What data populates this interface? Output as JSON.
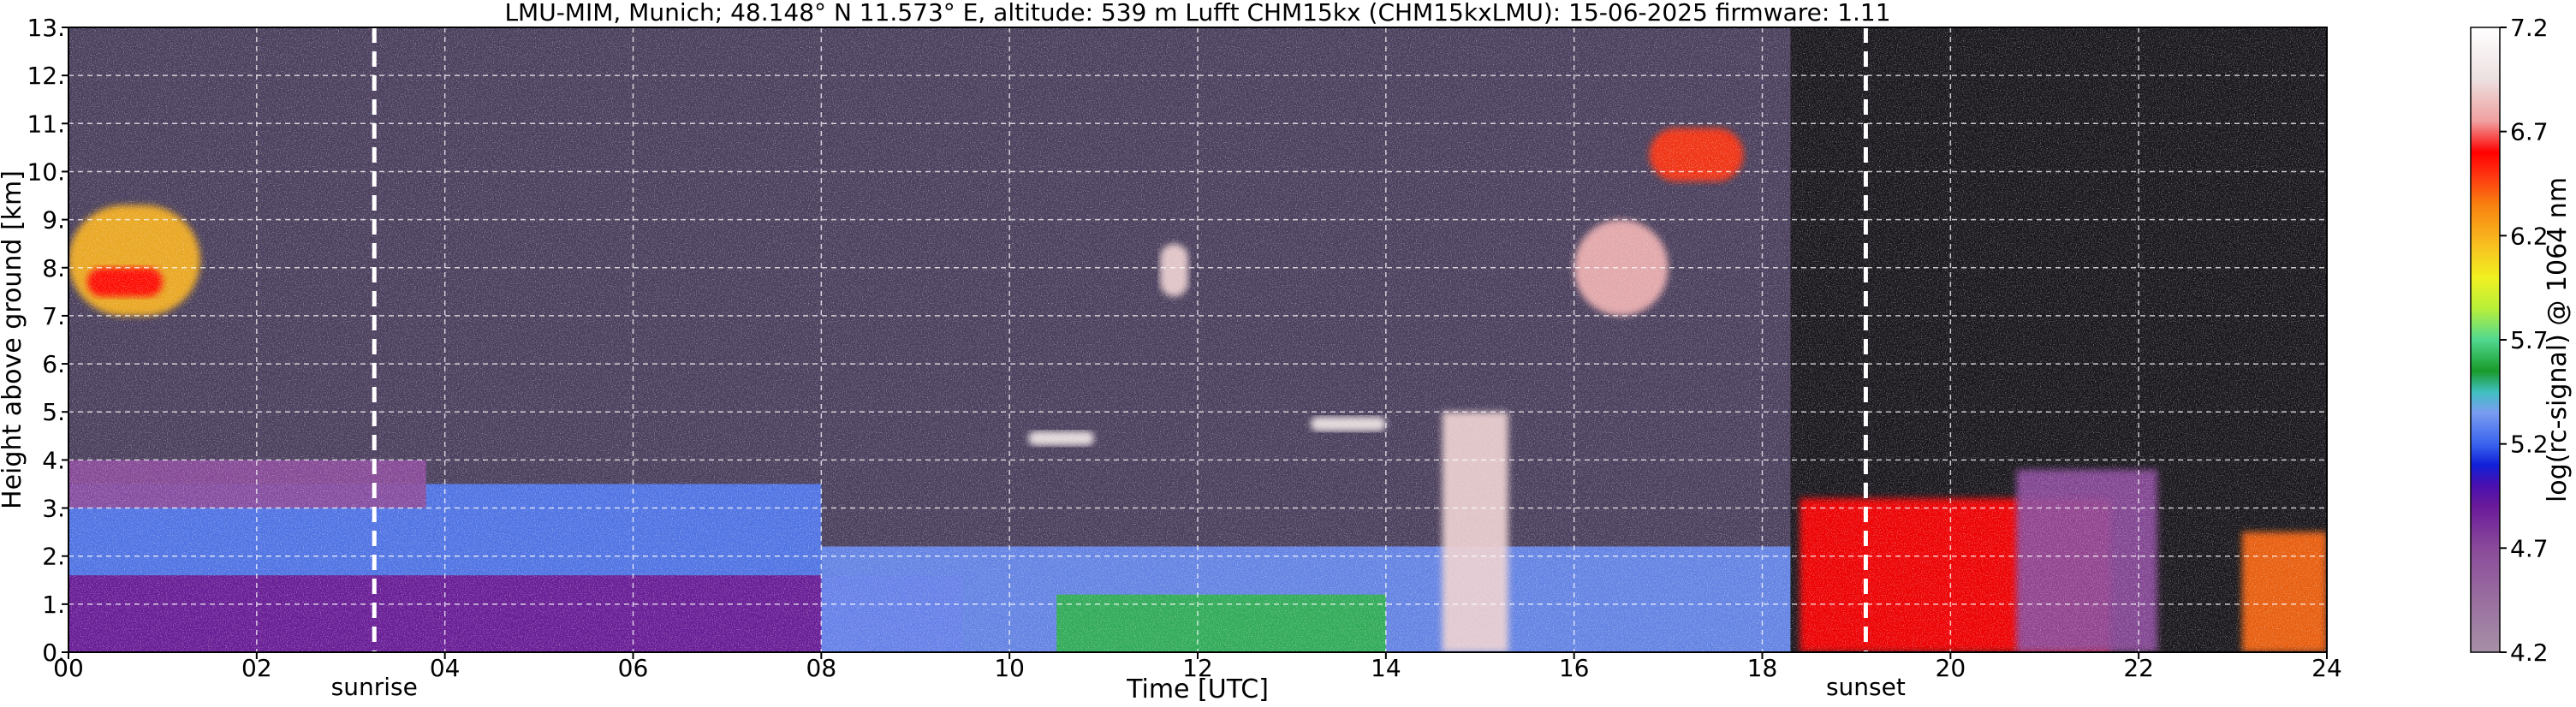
{
  "title": "LMU-MIM, Munich; 48.148° N 11.573° E, altitude: 539 m    Lufft CHM15kx (CHM15kxLMU): 15-06-2025    firmware: 1.11",
  "colors": {
    "background_noise": "#4a3f5c",
    "boundary_layer_purple": "#7a3a9a",
    "aerosol_blue": "#3a64ee",
    "green": "#2aa84a",
    "red": "#ff1010",
    "white": "#ffffff",
    "dark_region": "#101010",
    "grid": "#ffffff"
  },
  "chart_data": {
    "type": "heatmap",
    "xlabel": "Time [UTC]",
    "ylabel": "Height above ground [km]",
    "xlim": [
      0,
      24
    ],
    "ylim": [
      0,
      13
    ],
    "x_ticks": [
      0,
      2,
      4,
      6,
      8,
      10,
      12,
      14,
      16,
      18,
      20,
      22,
      24
    ],
    "x_tick_labels": [
      "00",
      "02",
      "04",
      "06",
      "08",
      "10",
      "12",
      "14",
      "16",
      "18",
      "20",
      "22",
      "24"
    ],
    "y_ticks": [
      0,
      1,
      2,
      3,
      4,
      5,
      6,
      7,
      8,
      9,
      10,
      11,
      12,
      13
    ],
    "y_tick_labels": [
      "0.",
      "1.",
      "2.",
      "3.",
      "4.",
      "5.",
      "6.",
      "7.",
      "8.",
      "9.",
      "10.",
      "11.",
      "12.",
      "13."
    ],
    "grid": true,
    "markers": [
      {
        "label": "sunrise",
        "x": 3.25
      },
      {
        "label": "sunset",
        "x": 19.1
      }
    ],
    "colorbar": {
      "label": "log(rc-signal) @ 1064 nm",
      "range": [
        4.2,
        7.2
      ],
      "tick_values": [
        4.2,
        4.7,
        5.2,
        5.7,
        6.2,
        6.7,
        7.2
      ],
      "tick_labels": [
        "4.2",
        "4.7",
        "5.2",
        "5.7",
        "6.2",
        "6.7",
        "7.2"
      ],
      "stops": [
        {
          "v": 4.2,
          "color": "#a690a6"
        },
        {
          "v": 4.45,
          "color": "#9a6fa0"
        },
        {
          "v": 4.7,
          "color": "#8a4a9a"
        },
        {
          "v": 4.9,
          "color": "#6a1a9a"
        },
        {
          "v": 5.0,
          "color": "#4a10b0"
        },
        {
          "v": 5.1,
          "color": "#1020d8"
        },
        {
          "v": 5.2,
          "color": "#3a64ee"
        },
        {
          "v": 5.35,
          "color": "#7a9cf0"
        },
        {
          "v": 5.45,
          "color": "#40c0c0"
        },
        {
          "v": 5.55,
          "color": "#1a9a2a"
        },
        {
          "v": 5.7,
          "color": "#50d890"
        },
        {
          "v": 5.85,
          "color": "#b8f03a"
        },
        {
          "v": 6.0,
          "color": "#f0f020"
        },
        {
          "v": 6.15,
          "color": "#f8c020"
        },
        {
          "v": 6.35,
          "color": "#f88010"
        },
        {
          "v": 6.5,
          "color": "#ff3010"
        },
        {
          "v": 6.6,
          "color": "#ff0000"
        },
        {
          "v": 6.75,
          "color": "#f0a0a0"
        },
        {
          "v": 6.95,
          "color": "#ece0e0"
        },
        {
          "v": 7.2,
          "color": "#ffffff"
        }
      ]
    },
    "features": [
      {
        "kind": "boundary-layer-core",
        "t_start": 0.0,
        "t_end": 9.5,
        "h_bottom": 0.0,
        "h_top": 1.6,
        "value": 4.9
      },
      {
        "kind": "residual-layer",
        "t_start": 0.0,
        "t_end": 8.0,
        "h_bottom": 1.6,
        "h_top": 3.5,
        "value": 5.25
      },
      {
        "kind": "elevated-layer",
        "t_start": 0.0,
        "t_end": 3.8,
        "h_bottom": 3.0,
        "h_top": 4.0,
        "value": 4.7
      },
      {
        "kind": "aerosol-layer",
        "t_start": 8.0,
        "t_end": 18.3,
        "h_bottom": 0.0,
        "h_top": 2.2,
        "value": 5.3
      },
      {
        "kind": "convective-layer",
        "t_start": 10.5,
        "t_end": 14.0,
        "h_bottom": 0.0,
        "h_top": 1.2,
        "value": 5.6
      },
      {
        "kind": "cirrus",
        "t_start": 0.0,
        "t_end": 1.4,
        "h_bottom": 7.0,
        "h_top": 9.3,
        "value": 6.2
      },
      {
        "kind": "cirrus",
        "t_start": 0.2,
        "t_end": 1.0,
        "h_bottom": 7.4,
        "h_top": 8.0,
        "value": 6.6
      },
      {
        "kind": "cirrus",
        "t_start": 16.0,
        "t_end": 17.0,
        "h_bottom": 7.0,
        "h_top": 9.0,
        "value": 6.8
      },
      {
        "kind": "cirrus",
        "t_start": 16.8,
        "t_end": 17.8,
        "h_bottom": 9.8,
        "h_top": 10.9,
        "value": 6.5
      },
      {
        "kind": "mid-cloud",
        "t_start": 11.6,
        "t_end": 11.9,
        "h_bottom": 7.4,
        "h_top": 8.5,
        "value": 6.9
      },
      {
        "kind": "mid-cloud",
        "t_start": 10.2,
        "t_end": 10.9,
        "h_bottom": 4.3,
        "h_top": 4.6,
        "value": 7.0
      },
      {
        "kind": "mid-cloud",
        "t_start": 13.2,
        "t_end": 14.0,
        "h_bottom": 4.6,
        "h_top": 4.9,
        "value": 7.0
      },
      {
        "kind": "cumulus",
        "t_start": 14.6,
        "t_end": 15.3,
        "h_bottom": 0.0,
        "h_top": 5.0,
        "value": 6.9
      },
      {
        "kind": "night-noise",
        "t_start": 18.3,
        "t_end": 24.0,
        "h_bottom": 0.0,
        "h_top": 13.0,
        "value": 3.8
      },
      {
        "kind": "evening-layer",
        "t_start": 18.4,
        "t_end": 21.7,
        "h_bottom": 0.0,
        "h_top": 3.2,
        "value": 6.6
      },
      {
        "kind": "evening-layer",
        "t_start": 20.7,
        "t_end": 22.2,
        "h_bottom": 0.0,
        "h_top": 3.8,
        "value": 4.7
      },
      {
        "kind": "evening-layer",
        "t_start": 23.1,
        "t_end": 24.0,
        "h_bottom": 0.0,
        "h_top": 2.5,
        "value": 6.4
      }
    ]
  }
}
